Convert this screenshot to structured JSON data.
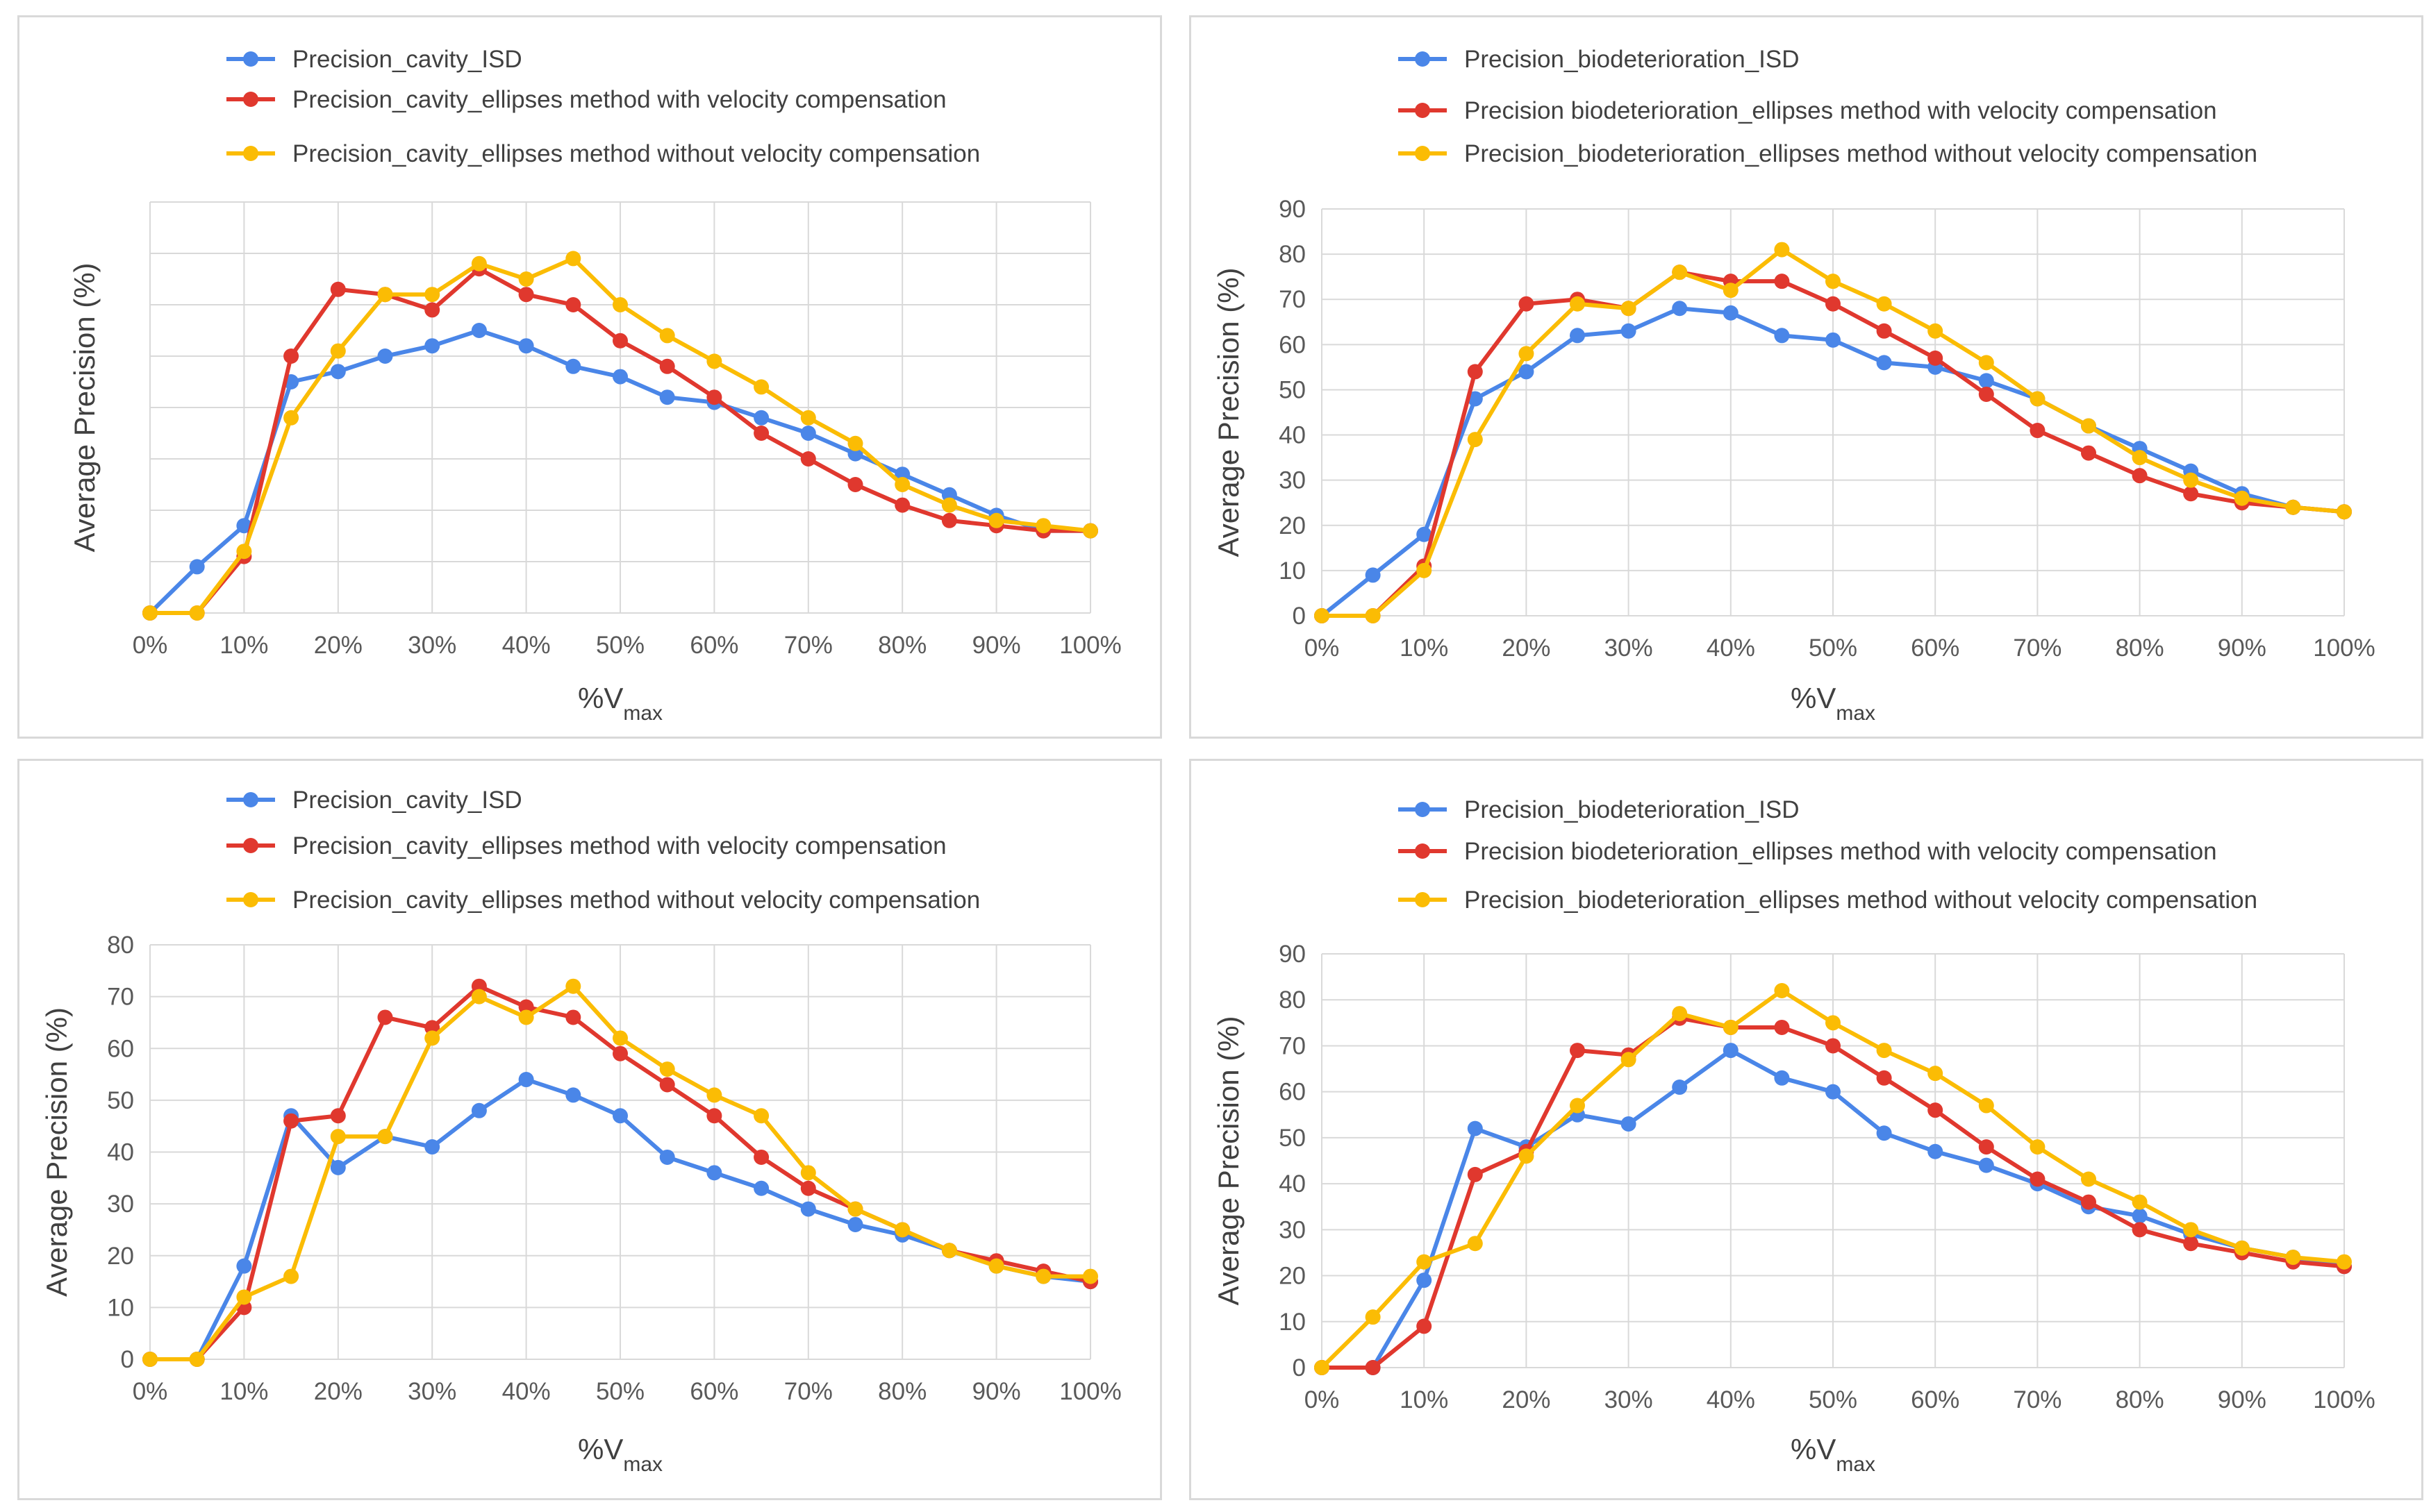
{
  "chart_data": [
    {
      "type": "line",
      "categories": [
        "0%",
        "5%",
        "10%",
        "15%",
        "20%",
        "25%",
        "30%",
        "35%",
        "40%",
        "45%",
        "50%",
        "55%",
        "60%",
        "65%",
        "70%",
        "75%",
        "80%",
        "85%",
        "90%",
        "95%",
        "100%"
      ],
      "xlabel": "%V",
      "xlabel_sub": "max",
      "ylabel": "Average Precision (%)",
      "ylim": [
        0,
        80
      ],
      "yticks": [],
      "grid": true,
      "legend_position": "top",
      "series": [
        {
          "name": "Precision_cavity_ISD",
          "color": "#4a86e8",
          "values": [
            0,
            9,
            17,
            45,
            47,
            50,
            52,
            55,
            52,
            48,
            46,
            42,
            41,
            38,
            35,
            31,
            27,
            23,
            19,
            16,
            16
          ]
        },
        {
          "name": "Precision_cavity_ellipses method with velocity compensation",
          "color": "#e0382e",
          "values": [
            0,
            0,
            11,
            50,
            63,
            62,
            59,
            67,
            62,
            60,
            53,
            48,
            42,
            35,
            30,
            25,
            21,
            18,
            17,
            16,
            16
          ]
        },
        {
          "name": "Precision_cavity_ellipses method without velocity compensation",
          "color": "#fbbc04",
          "values": [
            0,
            0,
            12,
            38,
            51,
            62,
            62,
            68,
            65,
            69,
            60,
            54,
            49,
            44,
            38,
            33,
            25,
            21,
            18,
            17,
            16
          ]
        }
      ]
    },
    {
      "type": "line",
      "categories": [
        "0%",
        "5%",
        "10%",
        "15%",
        "20%",
        "25%",
        "30%",
        "35%",
        "40%",
        "45%",
        "50%",
        "55%",
        "60%",
        "65%",
        "70%",
        "75%",
        "80%",
        "85%",
        "90%",
        "95%",
        "100%"
      ],
      "xlabel": "%V",
      "xlabel_sub": "max",
      "ylabel": "Average Precision (%)",
      "ylim": [
        0,
        90
      ],
      "yticks": [
        0,
        10,
        20,
        30,
        40,
        50,
        60,
        70,
        80,
        90
      ],
      "grid": true,
      "legend_position": "top",
      "series": [
        {
          "name": "Precision_biodeterioration_ISD",
          "color": "#4a86e8",
          "values": [
            0,
            9,
            18,
            48,
            54,
            62,
            63,
            68,
            67,
            62,
            61,
            56,
            55,
            52,
            48,
            42,
            37,
            32,
            27,
            24,
            23
          ]
        },
        {
          "name": "Precision biodeterioration_ellipses method with velocity compensation",
          "color": "#e0382e",
          "values": [
            0,
            0,
            11,
            54,
            69,
            70,
            68,
            76,
            74,
            74,
            69,
            63,
            57,
            49,
            41,
            36,
            31,
            27,
            25,
            24,
            23
          ]
        },
        {
          "name": "Precision_biodeterioration_ellipses method without velocity compensation",
          "color": "#fbbc04",
          "values": [
            0,
            0,
            10,
            39,
            58,
            69,
            68,
            76,
            72,
            81,
            74,
            69,
            63,
            56,
            48,
            42,
            35,
            30,
            26,
            24,
            23
          ]
        }
      ]
    },
    {
      "type": "line",
      "categories": [
        "0%",
        "5%",
        "10%",
        "15%",
        "20%",
        "25%",
        "30%",
        "35%",
        "40%",
        "45%",
        "50%",
        "55%",
        "60%",
        "65%",
        "70%",
        "75%",
        "80%",
        "85%",
        "90%",
        "95%",
        "100%"
      ],
      "xlabel": "%V",
      "xlabel_sub": "max",
      "ylabel": "Average Precision (%)",
      "ylim": [
        0,
        80
      ],
      "yticks": [
        0,
        10,
        20,
        30,
        40,
        50,
        60,
        70,
        80
      ],
      "grid": true,
      "legend_position": "top",
      "series": [
        {
          "name": "Precision_cavity_ISD",
          "color": "#4a86e8",
          "values": [
            0,
            0,
            18,
            47,
            37,
            43,
            41,
            48,
            54,
            51,
            47,
            39,
            36,
            33,
            29,
            26,
            24,
            21,
            18,
            16,
            15
          ]
        },
        {
          "name": "Precision_cavity_ellipses method with velocity compensation",
          "color": "#e0382e",
          "values": [
            0,
            0,
            10,
            46,
            47,
            66,
            64,
            72,
            68,
            66,
            59,
            53,
            47,
            39,
            33,
            29,
            25,
            21,
            19,
            17,
            15
          ]
        },
        {
          "name": "Precision_cavity_ellipses method without velocity compensation",
          "color": "#fbbc04",
          "values": [
            0,
            0,
            12,
            16,
            43,
            43,
            62,
            70,
            66,
            72,
            62,
            56,
            51,
            47,
            36,
            29,
            25,
            21,
            18,
            16,
            16
          ]
        }
      ]
    },
    {
      "type": "line",
      "categories": [
        "0%",
        "5%",
        "10%",
        "15%",
        "20%",
        "25%",
        "30%",
        "35%",
        "40%",
        "45%",
        "50%",
        "55%",
        "60%",
        "65%",
        "70%",
        "75%",
        "80%",
        "85%",
        "90%",
        "95%",
        "100%"
      ],
      "xlabel": "%V",
      "xlabel_sub": "max",
      "ylabel": "Average Precision (%)",
      "ylim": [
        0,
        90
      ],
      "yticks": [
        0,
        10,
        20,
        30,
        40,
        50,
        60,
        70,
        80,
        90
      ],
      "grid": true,
      "legend_position": "top",
      "series": [
        {
          "name": "Precision_biodeterioration_ISD",
          "color": "#4a86e8",
          "values": [
            0,
            0,
            19,
            52,
            48,
            55,
            53,
            61,
            69,
            63,
            60,
            51,
            47,
            44,
            40,
            35,
            33,
            29,
            26,
            24,
            22
          ]
        },
        {
          "name": "Precision biodeterioration_ellipses method with velocity compensation",
          "color": "#e0382e",
          "values": [
            0,
            0,
            9,
            42,
            47,
            69,
            68,
            76,
            74,
            74,
            70,
            63,
            56,
            48,
            41,
            36,
            30,
            27,
            25,
            23,
            22
          ]
        },
        {
          "name": "Precision_biodeterioration_ellipses method without velocity compensation",
          "color": "#fbbc04",
          "values": [
            0,
            11,
            23,
            27,
            46,
            57,
            67,
            77,
            74,
            82,
            75,
            69,
            64,
            57,
            48,
            41,
            36,
            30,
            26,
            24,
            23
          ]
        }
      ]
    }
  ]
}
